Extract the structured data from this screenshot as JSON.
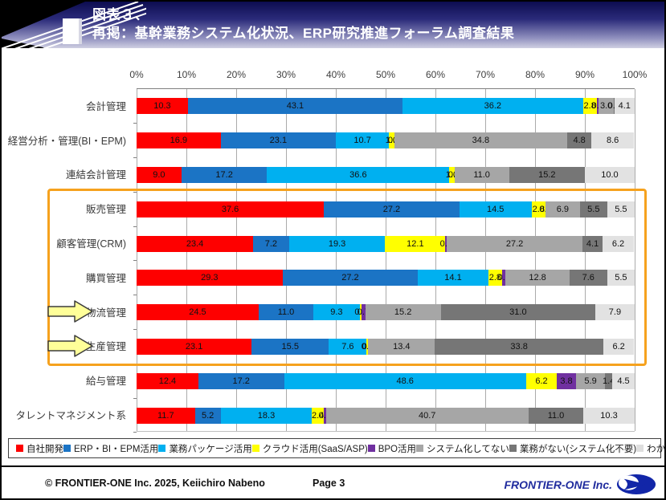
{
  "header": {
    "title_line1": "図表３、",
    "title_line2": "再掲：基幹業務システム化状況、ERP研究推進フォーラム調査結果"
  },
  "chart_data": {
    "type": "bar",
    "stacked": true,
    "orientation": "horizontal",
    "unit": "percent",
    "xlim": [
      0,
      100
    ],
    "x_ticks": [
      "0%",
      "10%",
      "20%",
      "30%",
      "40%",
      "50%",
      "60%",
      "70%",
      "80%",
      "90%",
      "100%"
    ],
    "grid": "vertical",
    "categories": [
      "会計管理",
      "経営分析・管理(BI・EPM)",
      "連結会計管理",
      "販売管理",
      "顧客管理(CRM)",
      "購買管理",
      "物流管理",
      "生産管理",
      "給与管理",
      "タレントマネジメント系"
    ],
    "series": [
      {
        "name": "自社開発",
        "color": "#fe0000",
        "values": [
          10.3,
          16.9,
          9.0,
          37.6,
          23.4,
          29.3,
          24.5,
          23.1,
          12.4,
          11.7
        ]
      },
      {
        "name": "ERP・BI・EPM活用",
        "color": "#1b74c5",
        "values": [
          43.1,
          23.1,
          17.2,
          27.2,
          7.2,
          27.2,
          11.0,
          15.5,
          17.2,
          5.2
        ]
      },
      {
        "name": "業務パッケージ活用",
        "color": "#00b0f0",
        "values": [
          36.2,
          10.7,
          36.6,
          14.5,
          19.3,
          14.1,
          9.3,
          7.6,
          48.6,
          18.3
        ]
      },
      {
        "name": "クラウド活用(SaaS/ASP)",
        "color": "#ffff00",
        "values": [
          2.8,
          1.0,
          1.0,
          2.8,
          12.1,
          2.8,
          0.4,
          0.3,
          6.2,
          2.4
        ]
      },
      {
        "name": "BPO活用",
        "color": "#7030a0",
        "values": [
          0.4,
          0.0,
          0.0,
          0.0,
          0.3,
          0.7,
          0.7,
          0.0,
          3.8,
          0.4
        ]
      },
      {
        "name": "システム化してない",
        "color": "#a6a6a6",
        "values": [
          3.0,
          34.8,
          11.0,
          6.9,
          27.2,
          12.8,
          15.2,
          13.4,
          5.9,
          40.7
        ]
      },
      {
        "name": "業務がない(システム化不要)",
        "color": "#767676",
        "values": [
          0.1,
          4.8,
          15.2,
          5.5,
          4.1,
          7.6,
          31.0,
          33.8,
          1.4,
          11.0
        ]
      },
      {
        "name": "わからない",
        "color": "#e2e2e2",
        "values": [
          4.1,
          8.6,
          10.0,
          5.5,
          6.2,
          5.5,
          7.9,
          6.2,
          4.5,
          10.3
        ]
      }
    ],
    "annotations": {
      "highlight_box_categories": [
        "販売管理",
        "顧客管理(CRM)",
        "購買管理",
        "物流管理",
        "生産管理"
      ],
      "highlight_box_color": "#f6a21e",
      "arrow_categories": [
        "物流管理",
        "生産管理"
      ],
      "arrow_color": "#ffff99"
    }
  },
  "legend": {
    "items": [
      {
        "label": "自社開発",
        "color": "#fe0000"
      },
      {
        "label": "ERP・BI・EPM活用",
        "color": "#1b74c5"
      },
      {
        "label": "業務パッケージ活用",
        "color": "#00b0f0"
      },
      {
        "label": "クラウド活用(SaaS/ASP)",
        "color": "#ffff00"
      },
      {
        "label": "BPO活用",
        "color": "#7030a0"
      },
      {
        "label": "システム化してない",
        "color": "#a6a6a6"
      },
      {
        "label": "業務がない(システム化不要)",
        "color": "#767676"
      },
      {
        "label": "わからない",
        "color": "#dedede"
      }
    ]
  },
  "footer": {
    "copyright": "© FRONTIER-ONE Inc. 2025,  Keiichiro  Nabeno",
    "page": "Page 3",
    "logo_text": "FRONTIER-ONE Inc."
  }
}
